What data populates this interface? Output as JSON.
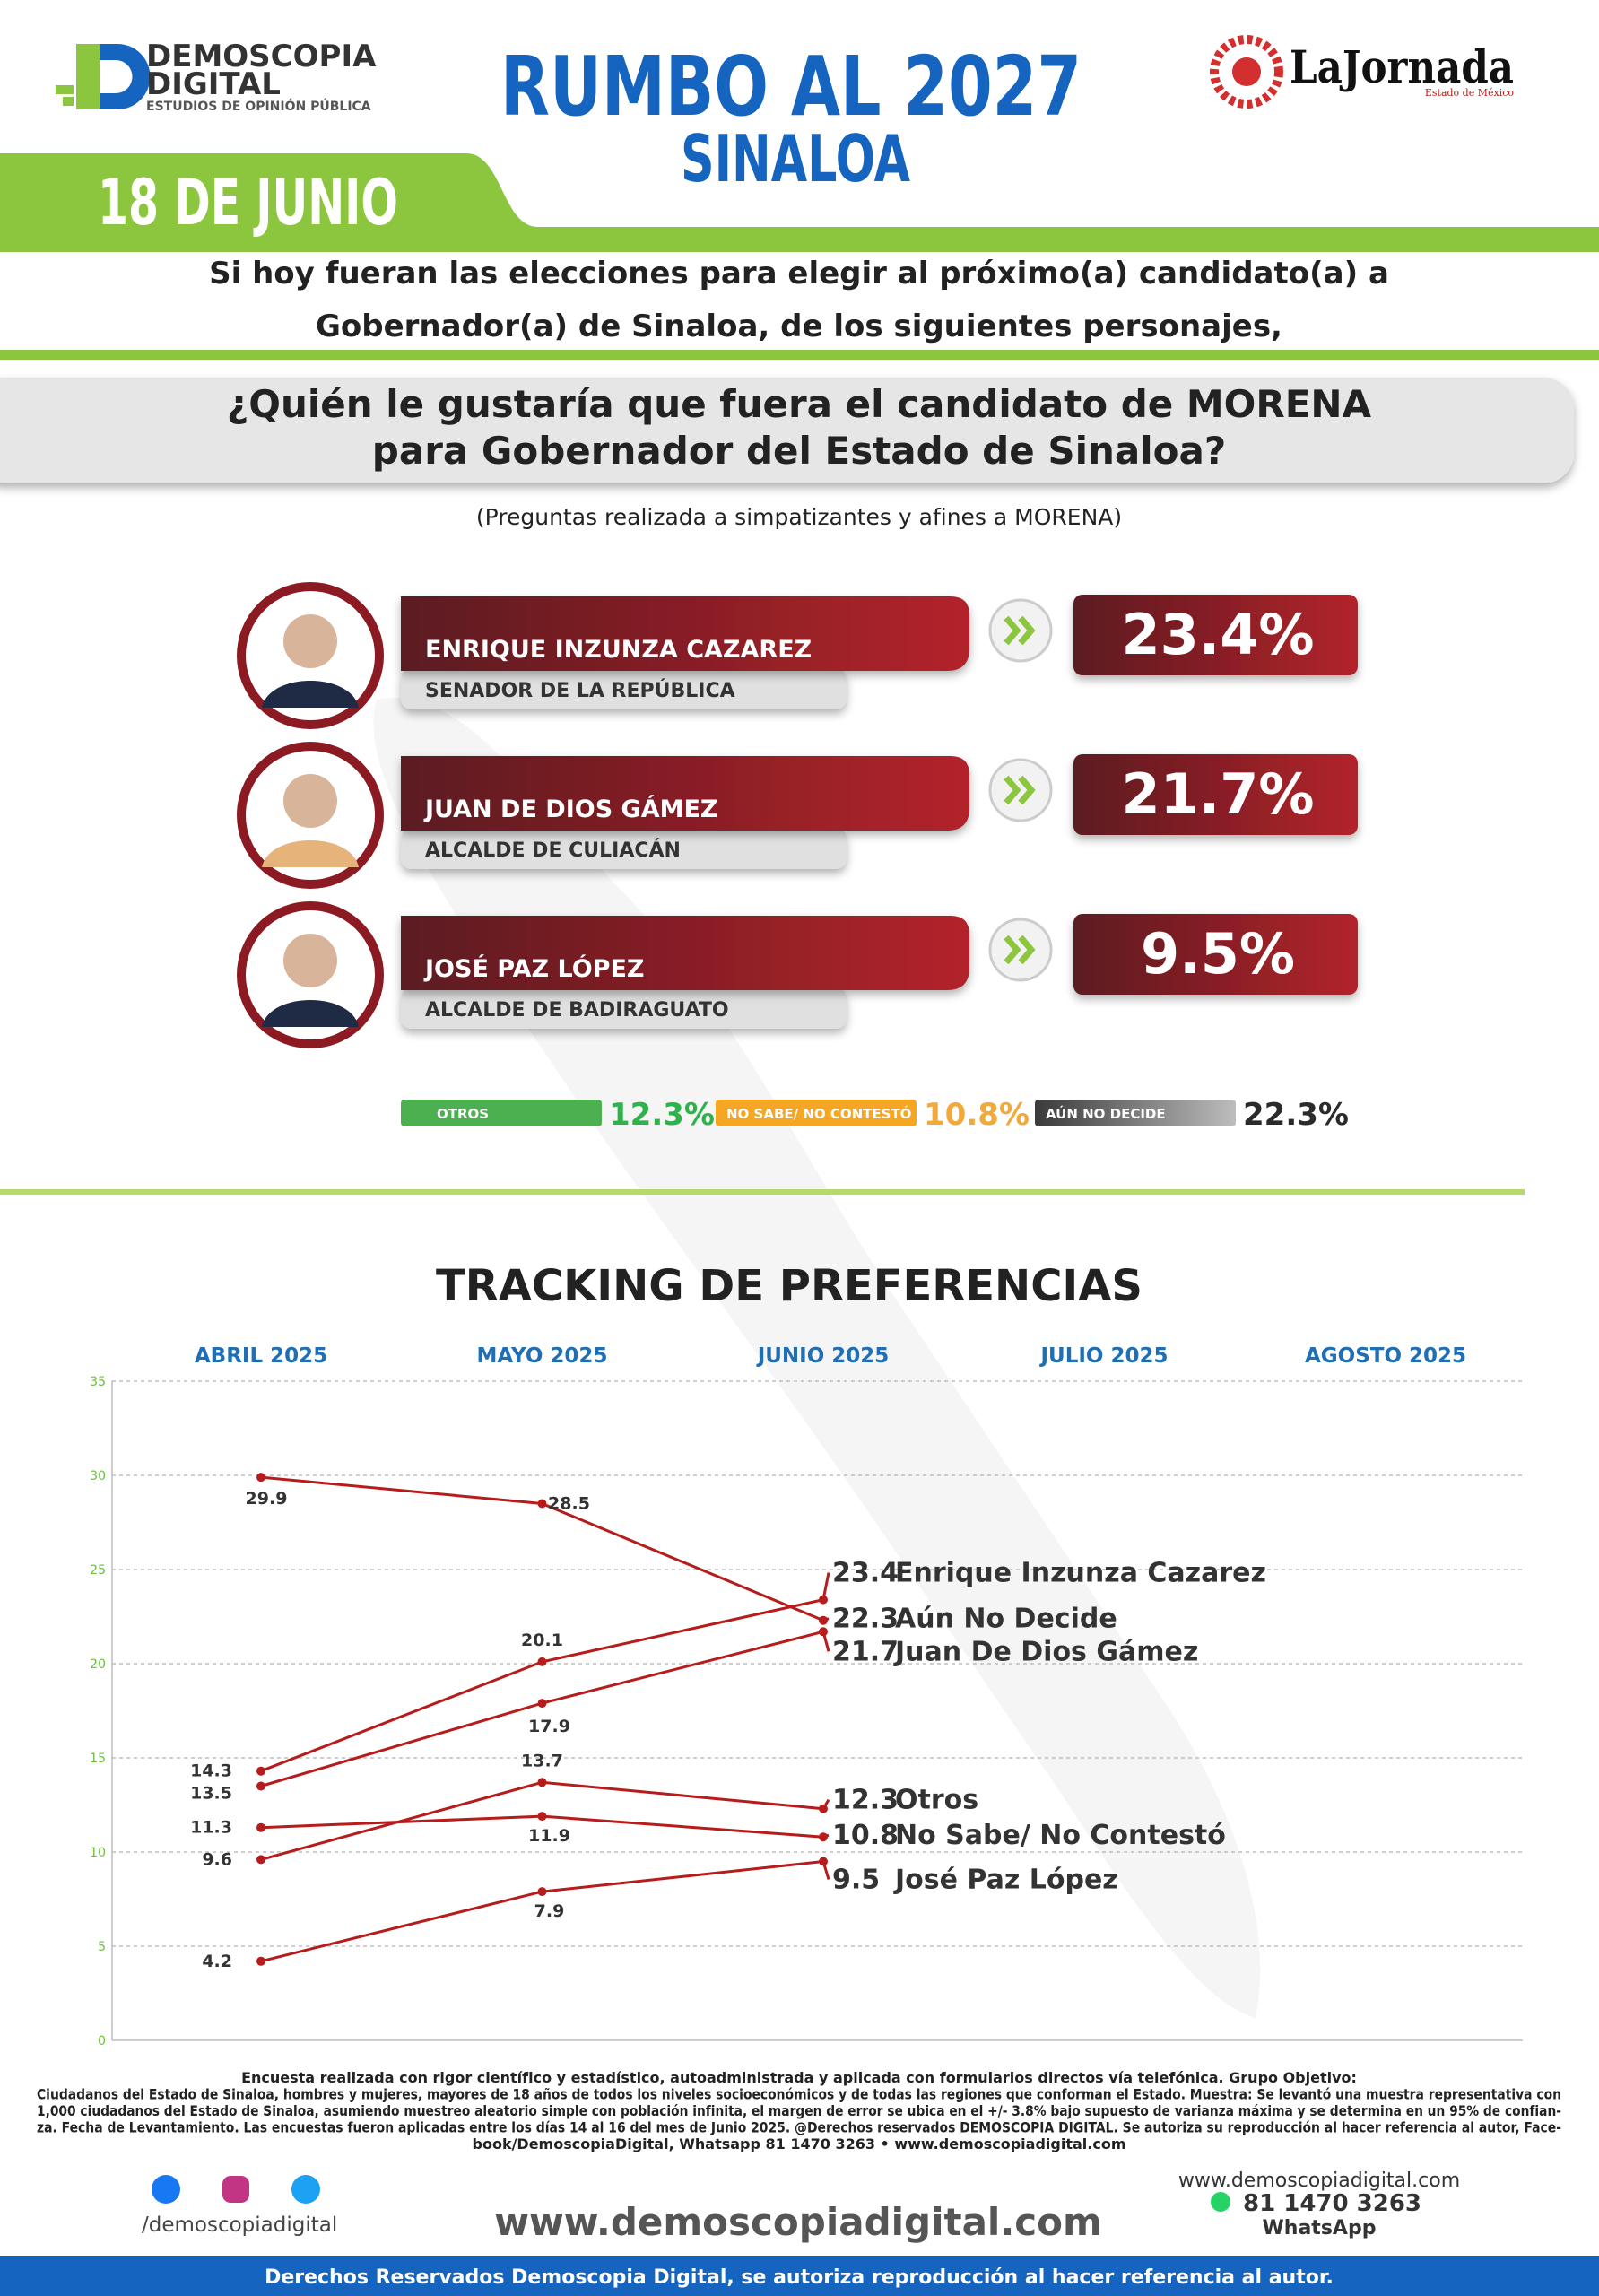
{
  "header": {
    "logo_name": "DEMOSCOPIA",
    "logo_sub": "DIGITAL",
    "logo_tagline": "ESTUDIOS DE OPINIÓN PÚBLICA",
    "title": "RUMBO AL 2027",
    "subtitle": "SINALOA",
    "date": "18 DE JUNIO",
    "partner": "LaJornada",
    "partner_sub": "Estado de México"
  },
  "intro": [
    "Si hoy fueran las elecciones para elegir al próximo(a) candidato(a) a",
    "Gobernador(a) de Sinaloa, de los siguientes personajes,"
  ],
  "question": [
    "¿Quién le gustaría que fuera el candidato de MORENA",
    "para Gobernador del Estado de Sinaloa?"
  ],
  "note": "(Preguntas realizada a simpatizantes y afines a MORENA)",
  "candidates": [
    {
      "name": "ENRIQUE INZUNZA CAZAREZ",
      "role": "SENADOR DE LA REPÚBLICA",
      "value": 23.4,
      "value_label": "23.4%"
    },
    {
      "name": "JUAN DE DIOS GÁMEZ",
      "role": "ALCALDE DE CULIACÁN",
      "value": 21.7,
      "value_label": "21.7%"
    },
    {
      "name": "JOSÉ PAZ LÓPEZ",
      "role": "ALCALDE DE BADIRAGUATO",
      "value": 9.5,
      "value_label": "9.5%"
    }
  ],
  "others": [
    {
      "label": "OTROS",
      "value": 12.3,
      "value_label": "12.3%",
      "color": "#4caf50",
      "text_color": "#2db34a"
    },
    {
      "label": "NO SABE/ NO CONTESTÓ",
      "value": 10.8,
      "value_label": "10.8%",
      "color": "#f5a623",
      "text_color": "#f2a93b"
    },
    {
      "label": "AÚN NO DECIDE",
      "value": 22.3,
      "value_label": "22.3%",
      "color": "#555555",
      "text_color": "#2b2b2b"
    }
  ],
  "chart_data": {
    "type": "line",
    "title": "TRACKING DE PREFERENCIAS",
    "categories": [
      "ABRIL 2025",
      "MAYO 2025",
      "JUNIO 2025",
      "JULIO 2025",
      "AGOSTO 2025"
    ],
    "series": [
      {
        "name": "Enrique Inzunza Cazarez",
        "color": "#b71c1c",
        "values": [
          14.3,
          20.1,
          23.4,
          null,
          null
        ]
      },
      {
        "name": "Aún No Decide",
        "color": "#b71c1c",
        "values": [
          29.9,
          28.5,
          22.3,
          null,
          null
        ]
      },
      {
        "name": "Juan De Dios Gámez",
        "color": "#b71c1c",
        "values": [
          13.5,
          17.9,
          21.7,
          null,
          null
        ]
      },
      {
        "name": "Otros",
        "color": "#b71c1c",
        "values": [
          9.6,
          13.7,
          12.3,
          null,
          null
        ]
      },
      {
        "name": "No Sabe/ No Contestó",
        "color": "#b71c1c",
        "values": [
          11.3,
          11.9,
          10.8,
          null,
          null
        ]
      },
      {
        "name": "José Paz López",
        "color": "#b71c1c",
        "values": [
          4.2,
          7.9,
          9.5,
          null,
          null
        ]
      }
    ],
    "ylim": [
      0,
      35
    ],
    "yticks": [
      0,
      5,
      10,
      15,
      20,
      25,
      30,
      35
    ],
    "grid": true
  },
  "footer": {
    "methodology": [
      "Encuesta realizada con rigor científico y estadístico, autoadministrada y aplicada con formularios directos vía telefónica. Grupo Objetivo:",
      "Ciudadanos del Estado de Sinaloa, hombres y mujeres, mayores de 18 años de todos los niveles socioeconómicos y de todas las regiones que conforman el Estado. Muestra: Se levantó una muestra representativa con",
      "1,000 ciudadanos del Estado de Sinaloa, asumiendo muestreo aleatorio simple con población infinita, el margen de error se ubica en el +/- 3.8% bajo supuesto de varianza máxima y se determina en un 95% de confian-",
      "za. Fecha de Levantamiento. Las encuestas fueron aplicadas entre los días 14 al 16 del mes de Junio 2025. @Derechos reservados DEMOSCOPIA DIGITAL. Se autoriza su reproducción al hacer referencia al autor, Face-",
      "book/DemoscopiaDigital, Whatsapp 81 1470 3263 • www.demoscopiadigital.com"
    ],
    "social_handle": "/demoscopiadigital",
    "website": "www.demoscopiadigital.com",
    "website_small": "www.demoscopiadigital.com",
    "phone": "81 1470 3263",
    "whatsapp": "WhatsApp",
    "rights": "Derechos Reservados Demoscopia Digital, se autoriza reproducción al hacer referencia al autor."
  }
}
